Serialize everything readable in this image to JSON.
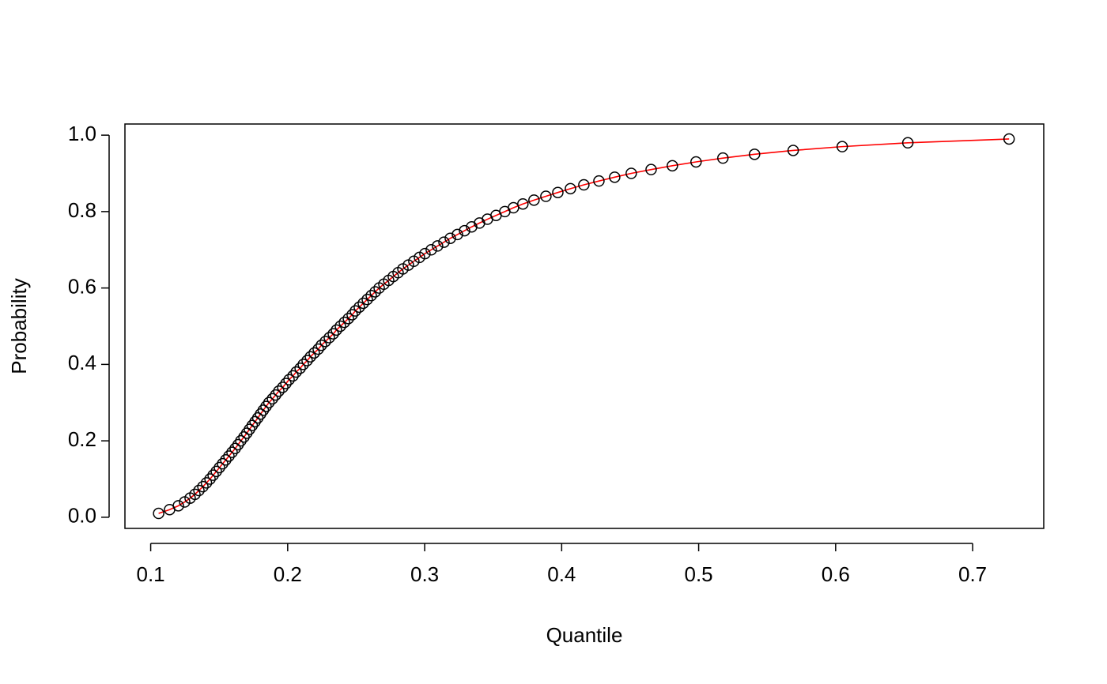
{
  "chart_data": {
    "type": "scatter",
    "x_label": "Quantile",
    "y_label": "Probability",
    "series": [
      {
        "x": [
          0.1058,
          0.1138,
          0.1202,
          0.1248,
          0.1288,
          0.1323,
          0.1352,
          0.1381,
          0.1407,
          0.1433,
          0.1456,
          0.1479,
          0.1502,
          0.1525,
          0.1548,
          0.1571,
          0.1594,
          0.1617,
          0.1638,
          0.1658,
          0.1681,
          0.1701,
          0.1721,
          0.1741,
          0.1762,
          0.1782,
          0.1802,
          0.1822,
          0.1842,
          0.1863,
          0.1889,
          0.1912,
          0.1935,
          0.1964,
          0.1987,
          0.201,
          0.2039,
          0.2062,
          0.2091,
          0.2114,
          0.2142,
          0.2166,
          0.2194,
          0.2223,
          0.2246,
          0.2275,
          0.2304,
          0.2333,
          0.2356,
          0.2385,
          0.2414,
          0.2443,
          0.2471,
          0.2494,
          0.2523,
          0.2552,
          0.2581,
          0.261,
          0.2639,
          0.2668,
          0.2702,
          0.2737,
          0.2771,
          0.2806,
          0.2841,
          0.2881,
          0.2921,
          0.2962,
          0.3002,
          0.3048,
          0.3094,
          0.3141,
          0.3187,
          0.3239,
          0.3291,
          0.3343,
          0.34,
          0.3458,
          0.3521,
          0.3585,
          0.3648,
          0.3717,
          0.3798,
          0.3885,
          0.3972,
          0.4064,
          0.4162,
          0.4272,
          0.4387,
          0.4508,
          0.4653,
          0.4808,
          0.4981,
          0.5177,
          0.5408,
          0.569,
          0.6048,
          0.6527,
          0.7266
        ],
        "values": [
          0.01,
          0.02,
          0.03,
          0.04,
          0.05,
          0.06,
          0.07,
          0.08,
          0.09,
          0.1,
          0.11,
          0.12,
          0.13,
          0.14,
          0.15,
          0.16,
          0.17,
          0.18,
          0.19,
          0.2,
          0.21,
          0.22,
          0.23,
          0.24,
          0.25,
          0.26,
          0.27,
          0.28,
          0.29,
          0.3,
          0.31,
          0.32,
          0.33,
          0.34,
          0.35,
          0.36,
          0.37,
          0.38,
          0.39,
          0.4,
          0.41,
          0.42,
          0.43,
          0.44,
          0.45,
          0.46,
          0.47,
          0.48,
          0.49,
          0.5,
          0.51,
          0.52,
          0.53,
          0.54,
          0.55,
          0.56,
          0.57,
          0.58,
          0.59,
          0.6,
          0.61,
          0.62,
          0.63,
          0.64,
          0.65,
          0.66,
          0.67,
          0.68,
          0.69,
          0.7,
          0.71,
          0.72,
          0.73,
          0.74,
          0.75,
          0.76,
          0.77,
          0.78,
          0.79,
          0.8,
          0.81,
          0.82,
          0.83,
          0.84,
          0.85,
          0.86,
          0.87,
          0.88,
          0.89,
          0.9,
          0.91,
          0.92,
          0.93,
          0.94,
          0.95,
          0.96,
          0.97,
          0.98,
          0.99
        ],
        "color": "#000000",
        "line_color": "#ff0000"
      }
    ],
    "xlim": [
      0.0812,
      0.7519
    ],
    "xticks": [
      0.1,
      0.2,
      0.3,
      0.4,
      0.5,
      0.6,
      0.7
    ],
    "ylim": [
      -0.0292,
      1.0292
    ],
    "yticks": [
      {
        "value": 0,
        "label": "0.0"
      },
      0.2,
      0.4,
      0.6,
      0.8,
      {
        "value": 1,
        "label": "1.0"
      }
    ],
    "grid": false
  }
}
